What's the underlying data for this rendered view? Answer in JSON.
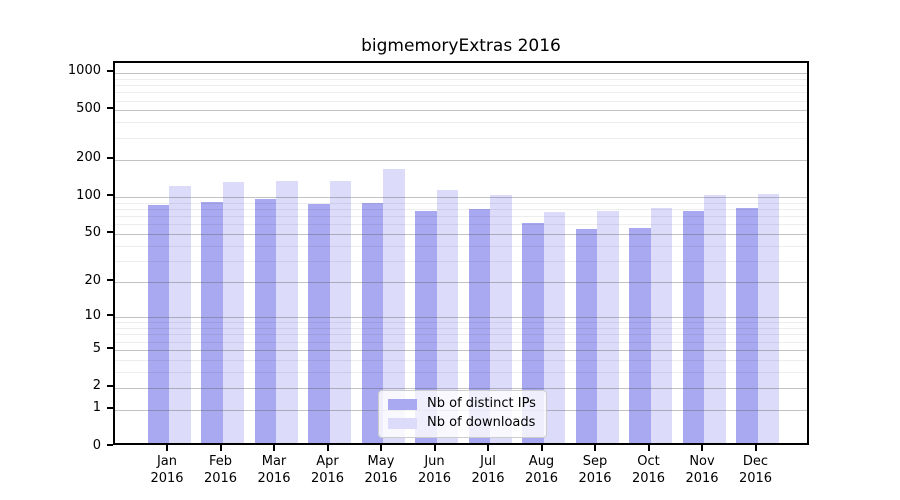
{
  "title": "bigmemoryExtras 2016",
  "chart_data": {
    "type": "bar",
    "title": "bigmemoryExtras 2016",
    "categories": [
      "Jan 2016",
      "Feb 2016",
      "Mar 2016",
      "Apr 2016",
      "May 2016",
      "Jun 2016",
      "Jul 2016",
      "Aug 2016",
      "Sep 2016",
      "Oct 2016",
      "Nov 2016",
      "Dec 2016"
    ],
    "series": [
      {
        "name": "Nb of distinct IPs",
        "color": "#a9a9f1",
        "values": [
          80,
          85,
          90,
          81,
          83,
          72,
          74,
          57,
          51,
          52,
          71,
          76
        ]
      },
      {
        "name": "Nb of downloads",
        "color": "#dcdcfa",
        "values": [
          115,
          124,
          126,
          125,
          158,
          106,
          96,
          70,
          72,
          76,
          97,
          98
        ]
      }
    ],
    "xlabel": "",
    "ylabel": "",
    "yscale": "log1p",
    "ylim": [
      0,
      1200
    ],
    "yticks": [
      0,
      1,
      2,
      5,
      10,
      20,
      50,
      100,
      200,
      500,
      1000
    ],
    "minor_gridlines": [
      3,
      4,
      6,
      7,
      8,
      9,
      30,
      40,
      60,
      70,
      80,
      90,
      300,
      400,
      600,
      700,
      800,
      900
    ],
    "grid": true,
    "legend_position": "inside-bottom-center"
  },
  "legend": {
    "items": [
      {
        "label": "Nb of distinct IPs",
        "color": "#a9a9f1"
      },
      {
        "label": "Nb of downloads",
        "color": "#dcdcfa"
      }
    ]
  }
}
